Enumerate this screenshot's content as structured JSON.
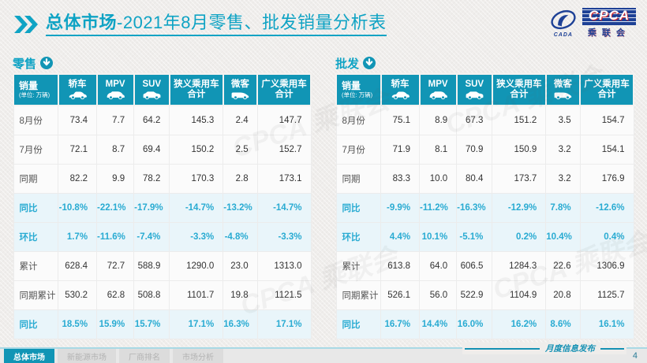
{
  "title": {
    "section": "总体市场",
    "rest": "-2021年8月零售、批发销量分析表"
  },
  "logo": {
    "acronym": "CPCA",
    "cn": "乘联会",
    "emblem_sub": "CADA"
  },
  "watermark": "CPCA 乘联会",
  "unit_header": {
    "title": "销量",
    "unit": "(单位: 万辆)"
  },
  "columns": [
    {
      "label": "轿车",
      "icon": "sedan-icon"
    },
    {
      "label": "MPV",
      "icon": "mpv-icon"
    },
    {
      "label": "SUV",
      "icon": "suv-icon"
    },
    {
      "label": "狭义乘用车合计",
      "icon": null
    },
    {
      "label": "微客",
      "icon": "van-icon"
    },
    {
      "label": "广义乘用车合计",
      "icon": null
    }
  ],
  "tables": [
    {
      "label": "零售",
      "rows": [
        {
          "label": "8月份",
          "type": "normal",
          "values": [
            "73.4",
            "7.7",
            "64.2",
            "145.3",
            "2.4",
            "147.7"
          ]
        },
        {
          "label": "7月份",
          "type": "normal",
          "values": [
            "72.1",
            "8.7",
            "69.4",
            "150.2",
            "2.5",
            "152.7"
          ]
        },
        {
          "label": "同期",
          "type": "normal",
          "values": [
            "82.2",
            "9.9",
            "78.2",
            "170.3",
            "2.8",
            "173.1"
          ]
        },
        {
          "label": "同比",
          "type": "highlight",
          "values": [
            "-10.8%",
            "-22.1%",
            "-17.9%",
            "-14.7%",
            "-13.2%",
            "-14.7%"
          ]
        },
        {
          "label": "环比",
          "type": "highlight",
          "values": [
            "1.7%",
            "-11.6%",
            "-7.4%",
            "-3.3%",
            "-4.8%",
            "-3.3%"
          ]
        },
        {
          "label": "累计",
          "type": "normal",
          "values": [
            "628.4",
            "72.7",
            "588.9",
            "1290.0",
            "23.0",
            "1313.0"
          ]
        },
        {
          "label": "同期累计",
          "type": "normal",
          "values": [
            "530.2",
            "62.8",
            "508.8",
            "1101.7",
            "19.8",
            "1121.5"
          ]
        },
        {
          "label": "同比",
          "type": "highlight",
          "values": [
            "18.5%",
            "15.9%",
            "15.7%",
            "17.1%",
            "16.3%",
            "17.1%"
          ]
        }
      ]
    },
    {
      "label": "批发",
      "rows": [
        {
          "label": "8月份",
          "type": "normal",
          "values": [
            "75.1",
            "8.9",
            "67.3",
            "151.2",
            "3.5",
            "154.7"
          ]
        },
        {
          "label": "7月份",
          "type": "normal",
          "values": [
            "71.9",
            "8.1",
            "70.9",
            "150.9",
            "3.2",
            "154.1"
          ]
        },
        {
          "label": "同期",
          "type": "normal",
          "values": [
            "83.3",
            "10.0",
            "80.4",
            "173.7",
            "3.2",
            "176.9"
          ]
        },
        {
          "label": "同比",
          "type": "highlight",
          "values": [
            "-9.9%",
            "-11.2%",
            "-16.3%",
            "-12.9%",
            "7.8%",
            "-12.6%"
          ]
        },
        {
          "label": "环比",
          "type": "highlight",
          "values": [
            "4.4%",
            "10.1%",
            "-5.1%",
            "0.2%",
            "10.4%",
            "0.4%"
          ]
        },
        {
          "label": "累计",
          "type": "normal",
          "values": [
            "613.8",
            "64.0",
            "606.5",
            "1284.3",
            "22.6",
            "1306.9"
          ]
        },
        {
          "label": "同期累计",
          "type": "normal",
          "values": [
            "526.1",
            "56.0",
            "522.9",
            "1104.9",
            "20.8",
            "1125.7"
          ]
        },
        {
          "label": "同比",
          "type": "highlight",
          "values": [
            "16.7%",
            "14.4%",
            "16.0%",
            "16.2%",
            "8.6%",
            "16.1%"
          ]
        }
      ]
    }
  ],
  "chart_data": [
    {
      "type": "table",
      "title": "零售 (单位: 万辆)",
      "columns": [
        "轿车",
        "MPV",
        "SUV",
        "狭义乘用车合计",
        "微客",
        "广义乘用车合计"
      ],
      "rows": {
        "8月份": [
          73.4,
          7.7,
          64.2,
          145.3,
          2.4,
          147.7
        ],
        "7月份": [
          72.1,
          8.7,
          69.4,
          150.2,
          2.5,
          152.7
        ],
        "同期": [
          82.2,
          9.9,
          78.2,
          170.3,
          2.8,
          173.1
        ],
        "同比": [
          "-10.8%",
          "-22.1%",
          "-17.9%",
          "-14.7%",
          "-13.2%",
          "-14.7%"
        ],
        "环比": [
          "1.7%",
          "-11.6%",
          "-7.4%",
          "-3.3%",
          "-4.8%",
          "-3.3%"
        ],
        "累计": [
          628.4,
          72.7,
          588.9,
          1290.0,
          23.0,
          1313.0
        ],
        "同期累计": [
          530.2,
          62.8,
          508.8,
          1101.7,
          19.8,
          1121.5
        ],
        "累计同比": [
          "18.5%",
          "15.9%",
          "15.7%",
          "17.1%",
          "16.3%",
          "17.1%"
        ]
      }
    },
    {
      "type": "table",
      "title": "批发 (单位: 万辆)",
      "columns": [
        "轿车",
        "MPV",
        "SUV",
        "狭义乘用车合计",
        "微客",
        "广义乘用车合计"
      ],
      "rows": {
        "8月份": [
          75.1,
          8.9,
          67.3,
          151.2,
          3.5,
          154.7
        ],
        "7月份": [
          71.9,
          8.1,
          70.9,
          150.9,
          3.2,
          154.1
        ],
        "同期": [
          83.3,
          10.0,
          80.4,
          173.7,
          3.2,
          176.9
        ],
        "同比": [
          "-9.9%",
          "-11.2%",
          "-16.3%",
          "-12.9%",
          "7.8%",
          "-12.6%"
        ],
        "环比": [
          "4.4%",
          "10.1%",
          "-5.1%",
          "0.2%",
          "10.4%",
          "0.4%"
        ],
        "累计": [
          613.8,
          64.0,
          606.5,
          1284.3,
          22.6,
          1306.9
        ],
        "同期累计": [
          526.1,
          56.0,
          522.9,
          1104.9,
          20.8,
          1125.7
        ],
        "累计同比": [
          "16.7%",
          "14.4%",
          "16.0%",
          "16.2%",
          "8.6%",
          "16.1%"
        ]
      }
    }
  ],
  "footer": {
    "tabs": [
      {
        "label": "总体市场",
        "active": true
      },
      {
        "label": "新能源市场",
        "active": false
      },
      {
        "label": "厂商排名",
        "active": false
      },
      {
        "label": "市场分析",
        "active": false
      }
    ],
    "note": "月度信息发布",
    "page": "4"
  },
  "colors": {
    "teal_header": "#1195b5",
    "title_cyan": "#0fa3c4",
    "percent_cyan": "#29abd2",
    "highlight_row_bg": "#e9f5fa",
    "logo_blue": "#1e4196",
    "logo_red": "#d0272e"
  }
}
